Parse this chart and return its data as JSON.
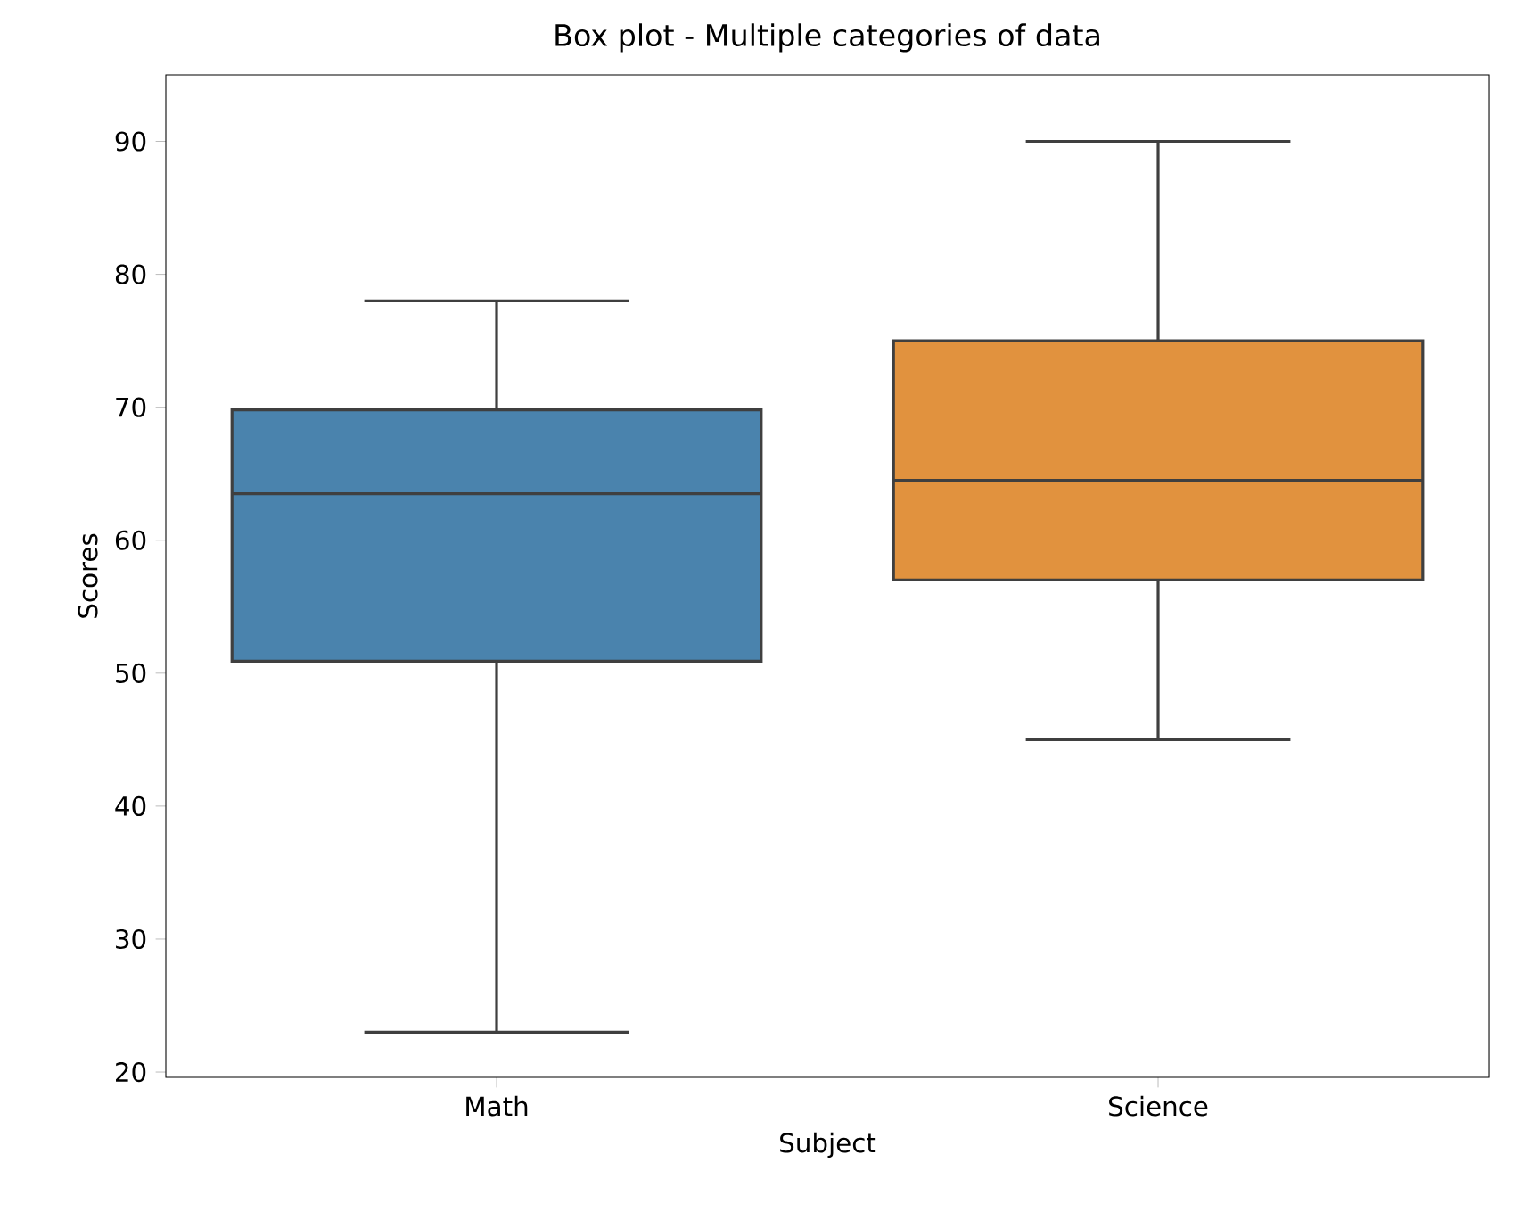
{
  "chart_data": {
    "type": "box",
    "title": "Box plot - Multiple categories of data",
    "xlabel": "Subject",
    "ylabel": "Scores",
    "categories": [
      "Math",
      "Science"
    ],
    "colors": [
      "#4a83ad",
      "#e1923e"
    ],
    "boxes": [
      {
        "low": 23,
        "q1": 50.9,
        "median": 63.5,
        "q3": 69.8,
        "high": 78
      },
      {
        "low": 45,
        "q1": 57,
        "median": 64.5,
        "q3": 75,
        "high": 90
      }
    ],
    "ylim": [
      19.6,
      95
    ],
    "yticks": [
      20,
      30,
      40,
      50,
      60,
      70,
      80,
      90
    ]
  }
}
